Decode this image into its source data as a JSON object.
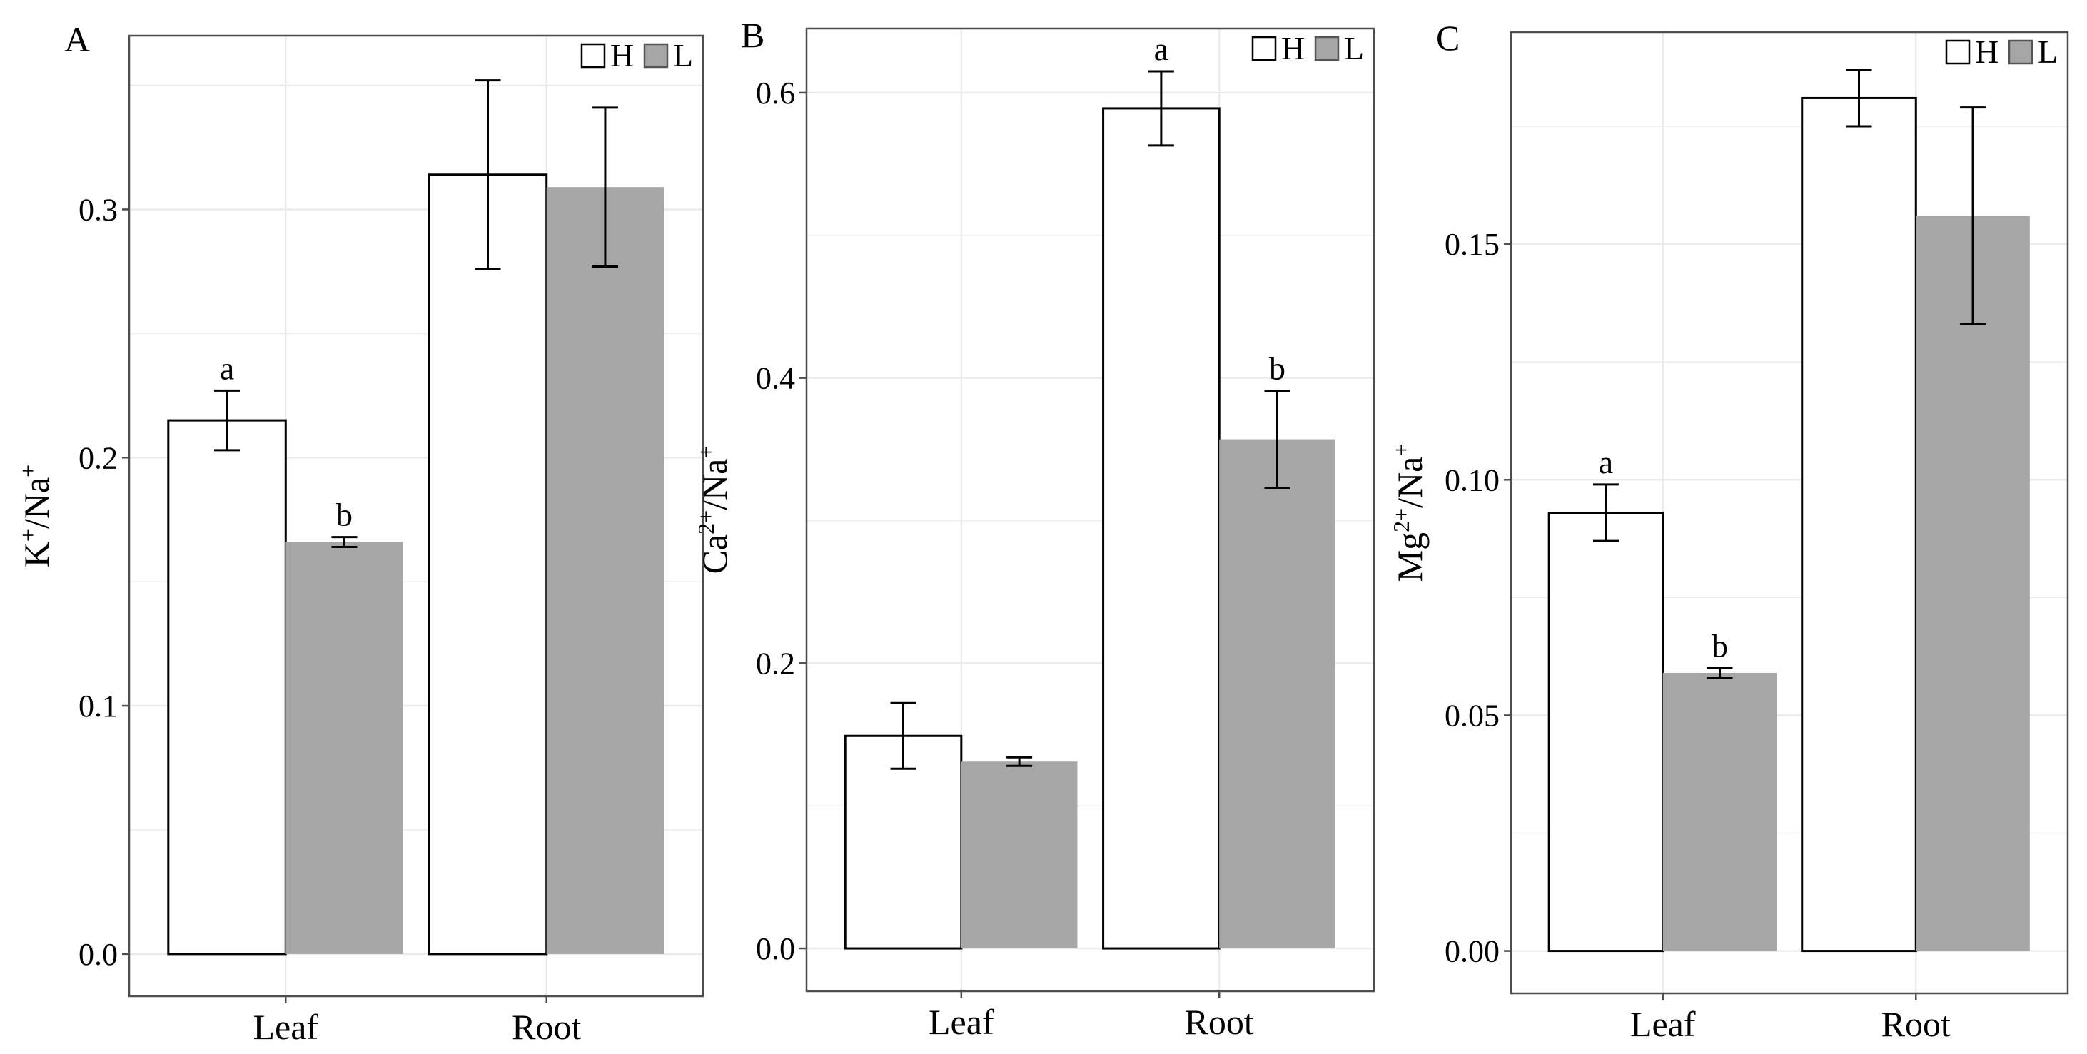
{
  "figure": {
    "background": "#ffffff",
    "colors": {
      "H": "#ffffff",
      "L": "#a6a6a6",
      "grid": "#ebebeb",
      "axis": "#4d4d4d"
    }
  },
  "chart_data": [
    {
      "panel_label": "A",
      "type": "bar",
      "ylabel": "K",
      "ylabel_num_sup": "+",
      "ylabel_den": "Na",
      "ylabel_den_sup": "+",
      "categories": [
        "Leaf",
        "Root"
      ],
      "ylim": [
        -0.017,
        0.37
      ],
      "yticks": [
        0.0,
        0.1,
        0.2,
        0.3
      ],
      "ytick_labels": [
        "0.0",
        "0.1",
        "0.2",
        "0.3"
      ],
      "legend": {
        "position": "top-right",
        "entries": [
          "H",
          "L"
        ]
      },
      "series": [
        {
          "name": "H",
          "values": [
            0.215,
            0.314
          ],
          "errors": [
            0.012,
            0.038
          ],
          "letters": [
            "a",
            ""
          ]
        },
        {
          "name": "L",
          "values": [
            0.166,
            0.309
          ],
          "errors": [
            0.002,
            0.032
          ],
          "letters": [
            "b",
            ""
          ]
        }
      ]
    },
    {
      "panel_label": "B",
      "type": "bar",
      "ylabel": "Ca",
      "ylabel_num_sup": "2+",
      "ylabel_den": "Na",
      "ylabel_den_sup": "+",
      "categories": [
        "Leaf",
        "Root"
      ],
      "ylim": [
        -0.03,
        0.645
      ],
      "yticks": [
        0.0,
        0.2,
        0.4,
        0.6
      ],
      "ytick_labels": [
        "0.0",
        "0.2",
        "0.4",
        "0.6"
      ],
      "legend": {
        "position": "top-right",
        "entries": [
          "H",
          "L"
        ]
      },
      "series": [
        {
          "name": "H",
          "values": [
            0.149,
            0.589
          ],
          "errors": [
            0.023,
            0.026
          ],
          "letters": [
            "",
            "a"
          ]
        },
        {
          "name": "L",
          "values": [
            0.131,
            0.357
          ],
          "errors": [
            0.003,
            0.034
          ],
          "letters": [
            "",
            "b"
          ]
        }
      ]
    },
    {
      "panel_label": "C",
      "type": "bar",
      "ylabel": "Mg",
      "ylabel_num_sup": "2+",
      "ylabel_den": "Na",
      "ylabel_den_sup": "+",
      "categories": [
        "Leaf",
        "Root"
      ],
      "ylim": [
        -0.009,
        0.195
      ],
      "yticks": [
        0.0,
        0.05,
        0.1,
        0.15
      ],
      "ytick_labels": [
        "0.00",
        "0.05",
        "0.10",
        "0.15"
      ],
      "legend": {
        "position": "top-right",
        "entries": [
          "H",
          "L"
        ]
      },
      "series": [
        {
          "name": "H",
          "values": [
            0.093,
            0.181
          ],
          "errors": [
            0.006,
            0.006
          ],
          "letters": [
            "a",
            ""
          ]
        },
        {
          "name": "L",
          "values": [
            0.059,
            0.156
          ],
          "errors": [
            0.001,
            0.023
          ],
          "letters": [
            "b",
            ""
          ]
        }
      ]
    }
  ]
}
